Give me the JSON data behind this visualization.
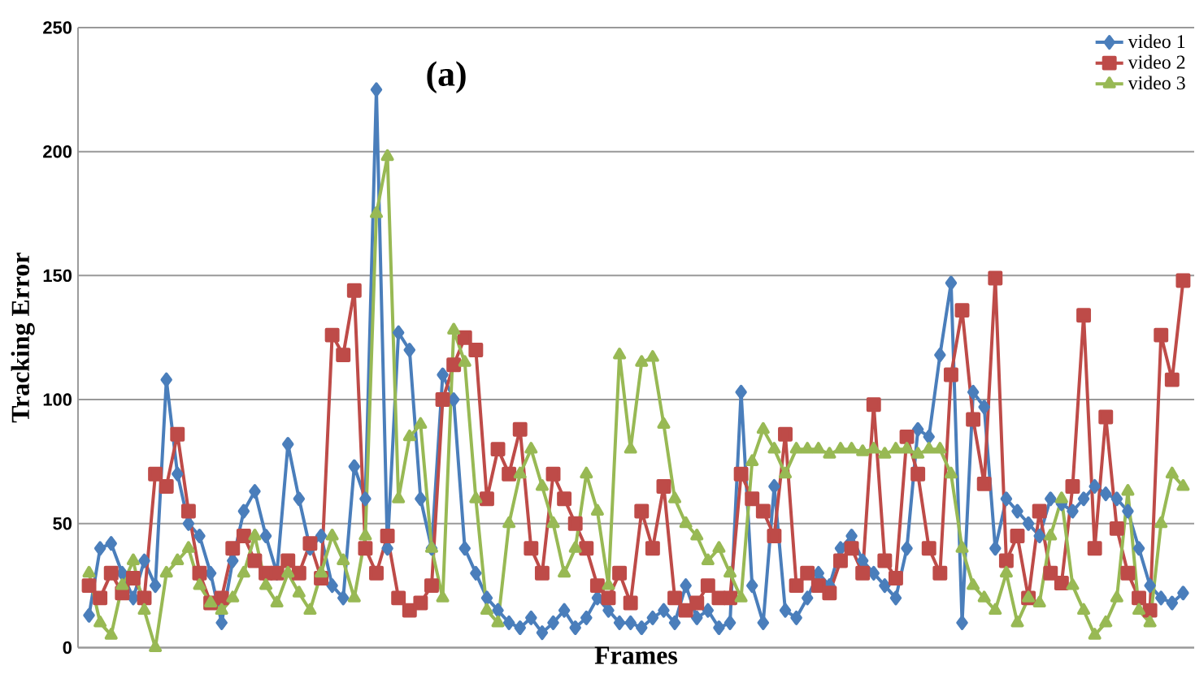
{
  "chart_data": {
    "type": "line",
    "xlabel": "Frames",
    "ylabel": "Tracking Error",
    "annotations": [
      "(a)"
    ],
    "categories": [
      null,
      null,
      null,
      null,
      null,
      null,
      null,
      null,
      null,
      null,
      null,
      null,
      null,
      null,
      null,
      null,
      null,
      null,
      null,
      null,
      null,
      null,
      null,
      null,
      null,
      null,
      null,
      null,
      null,
      null,
      null,
      null,
      null,
      null,
      null,
      null,
      null,
      null,
      null,
      null,
      null,
      null,
      null,
      null,
      null,
      null,
      null,
      null,
      null,
      null,
      null,
      null,
      null,
      null,
      null,
      null,
      null,
      null,
      null,
      null,
      null,
      null,
      null,
      null,
      null,
      null,
      null,
      null,
      null,
      null,
      null,
      null,
      null,
      null,
      null,
      null,
      null,
      null,
      null,
      null,
      null,
      null,
      null,
      null,
      null,
      null,
      null,
      null,
      null,
      null,
      null,
      null,
      null,
      null,
      null,
      null,
      null,
      null,
      null,
      null
    ],
    "series": [
      {
        "name": "video 1",
        "color": "#4a7ebb",
        "marker": "diamond",
        "values": [
          13,
          40,
          42,
          30,
          20,
          35,
          25,
          108,
          70,
          50,
          45,
          30,
          10,
          35,
          55,
          63,
          45,
          30,
          82,
          60,
          40,
          45,
          25,
          20,
          73,
          60,
          225,
          40,
          127,
          120,
          60,
          40,
          110,
          100,
          40,
          30,
          20,
          15,
          10,
          8,
          12,
          6,
          10,
          15,
          8,
          12,
          20,
          15,
          10,
          10,
          8,
          12,
          15,
          10,
          25,
          12,
          15,
          8,
          10,
          103,
          25,
          10,
          65,
          15,
          12,
          20,
          30,
          25,
          40,
          45,
          35,
          30,
          25,
          20,
          40,
          88,
          85,
          118,
          147,
          10,
          103,
          97,
          40,
          60,
          55,
          50,
          45,
          60,
          58,
          55,
          60,
          65,
          62,
          60,
          55,
          40,
          25,
          20,
          18,
          22
        ]
      },
      {
        "name": "video 2",
        "color": "#be4b48",
        "marker": "square",
        "values": [
          25,
          20,
          30,
          22,
          28,
          20,
          70,
          65,
          86,
          55,
          30,
          18,
          20,
          40,
          45,
          35,
          30,
          30,
          35,
          30,
          42,
          28,
          126,
          118,
          144,
          40,
          30,
          45,
          20,
          15,
          18,
          25,
          100,
          114,
          125,
          120,
          60,
          80,
          70,
          88,
          40,
          30,
          70,
          60,
          50,
          40,
          25,
          20,
          30,
          18,
          55,
          40,
          65,
          20,
          15,
          18,
          25,
          20,
          20,
          70,
          60,
          55,
          45,
          86,
          25,
          30,
          25,
          22,
          35,
          40,
          30,
          98,
          35,
          28,
          85,
          70,
          40,
          30,
          110,
          136,
          92,
          66,
          149,
          35,
          45,
          20,
          55,
          30,
          26,
          65,
          134,
          40,
          93,
          48,
          30,
          20,
          15,
          126,
          108,
          148
        ]
      },
      {
        "name": "video 3",
        "color": "#98b954",
        "marker": "triangle",
        "values": [
          30,
          10,
          5,
          25,
          35,
          15,
          0,
          30,
          35,
          40,
          25,
          18,
          15,
          20,
          30,
          45,
          25,
          18,
          30,
          22,
          15,
          30,
          45,
          35,
          20,
          45,
          175,
          198,
          60,
          85,
          90,
          40,
          20,
          128,
          115,
          60,
          15,
          10,
          50,
          70,
          80,
          65,
          50,
          30,
          40,
          70,
          55,
          25,
          118,
          80,
          115,
          117,
          90,
          60,
          50,
          45,
          35,
          40,
          30,
          20,
          75,
          88,
          80,
          70,
          80,
          80,
          80,
          78,
          80,
          80,
          79,
          80,
          78,
          80,
          80,
          78,
          80,
          80,
          70,
          40,
          25,
          20,
          15,
          30,
          10,
          20,
          18,
          45,
          60,
          25,
          15,
          5,
          10,
          20,
          63,
          15,
          10,
          50,
          70,
          65
        ]
      }
    ],
    "ylim": [
      0,
      250
    ],
    "yticks": [
      0,
      50,
      100,
      150,
      200,
      250
    ],
    "grid": "y",
    "legend": "top right",
    "line_style": "solid"
  }
}
